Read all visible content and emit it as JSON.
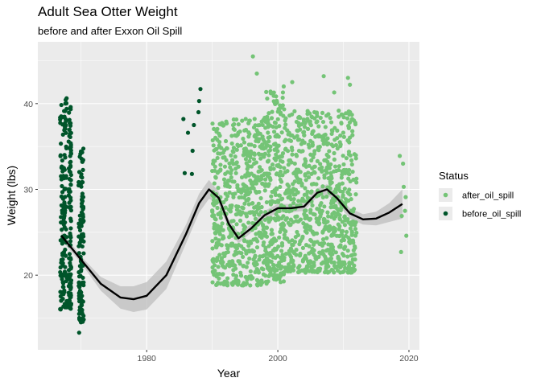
{
  "chart_data": {
    "type": "scatter",
    "title": "Adult Sea Otter Weight",
    "subtitle": "before and after Exxon Oil Spill",
    "xlabel": "Year",
    "ylabel": "Weight (lbs)",
    "xlim": [
      1963.4,
      2021.6
    ],
    "ylim": [
      11.3,
      47.2
    ],
    "x_ticks": [
      1980,
      2000,
      2020
    ],
    "y_ticks": [
      20,
      30,
      40
    ],
    "grid": true,
    "legend": {
      "title": "Status",
      "position": "right",
      "entries": [
        {
          "label": "after_oil_spill",
          "color": "#74c476"
        },
        {
          "label": "before_oil_spill",
          "color": "#00552a"
        }
      ]
    },
    "series": [
      {
        "name": "before_oil_spill",
        "color": "#00552a",
        "clusters": [
          {
            "x": [
              1966.8,
              1967.8
            ],
            "y": [
              16.0,
              40.8
            ]
          },
          {
            "x": [
              1968.1,
              1968.5
            ],
            "y": [
              16.0,
              40.5
            ]
          },
          {
            "x": [
              1969.6,
              1970.4
            ],
            "y": [
              14.5,
              34.8
            ]
          }
        ],
        "points": [
          {
            "x": 1969.7,
            "y": 13.3
          },
          {
            "x": 1985.6,
            "y": 38.2
          },
          {
            "x": 1985.8,
            "y": 31.9
          },
          {
            "x": 1986.3,
            "y": 36.6
          },
          {
            "x": 1986.9,
            "y": 31.8
          },
          {
            "x": 1987.0,
            "y": 34.5
          },
          {
            "x": 1987.2,
            "y": 37.5
          },
          {
            "x": 1987.9,
            "y": 39.0
          },
          {
            "x": 1988.0,
            "y": 40.3
          },
          {
            "x": 1988.2,
            "y": 41.7
          }
        ]
      },
      {
        "name": "after_oil_spill",
        "color": "#74c476",
        "clusters": [
          {
            "x": [
              1990,
              1998
            ],
            "y": [
              18.8,
              38.5
            ]
          },
          {
            "x": [
              1998,
              2001
            ],
            "y": [
              19.0,
              41.5
            ]
          },
          {
            "x": [
              2001,
              2012
            ],
            "y": [
              20.3,
              39.2
            ]
          }
        ],
        "points": [
          {
            "x": 1996.2,
            "y": 45.5
          },
          {
            "x": 1996.8,
            "y": 43.5
          },
          {
            "x": 2000.9,
            "y": 42.0
          },
          {
            "x": 2002.2,
            "y": 42.5
          },
          {
            "x": 2007.0,
            "y": 43.2
          },
          {
            "x": 2008.6,
            "y": 41.3
          },
          {
            "x": 2010.7,
            "y": 43.0
          },
          {
            "x": 2011.0,
            "y": 42.2
          },
          {
            "x": 2018.6,
            "y": 33.9
          },
          {
            "x": 2018.8,
            "y": 22.7
          },
          {
            "x": 2019.2,
            "y": 30.3
          },
          {
            "x": 2019.4,
            "y": 27.5
          },
          {
            "x": 2019.6,
            "y": 24.6
          },
          {
            "x": 2019.1,
            "y": 33.0
          },
          {
            "x": 2018.9,
            "y": 26.9
          },
          {
            "x": 2019.5,
            "y": 29.1
          }
        ]
      }
    ],
    "smooth": {
      "color": "#000000",
      "band_color": "#bdbdbd",
      "points": [
        {
          "x": 1967.0,
          "y": 24.6,
          "lo": 24.1,
          "hi": 25.1
        },
        {
          "x": 1970.0,
          "y": 21.8,
          "lo": 21.4,
          "hi": 22.2
        },
        {
          "x": 1973.0,
          "y": 19.0,
          "lo": 18.2,
          "hi": 19.8
        },
        {
          "x": 1976.0,
          "y": 17.4,
          "lo": 16.1,
          "hi": 18.7
        },
        {
          "x": 1978.0,
          "y": 17.2,
          "lo": 15.7,
          "hi": 18.7
        },
        {
          "x": 1980.0,
          "y": 17.6,
          "lo": 16.0,
          "hi": 19.2
        },
        {
          "x": 1983.0,
          "y": 20.0,
          "lo": 18.4,
          "hi": 21.6
        },
        {
          "x": 1986.0,
          "y": 24.8,
          "lo": 23.7,
          "hi": 25.9
        },
        {
          "x": 1988.0,
          "y": 28.4,
          "lo": 27.3,
          "hi": 29.5
        },
        {
          "x": 1989.5,
          "y": 30.0,
          "lo": 28.9,
          "hi": 31.1
        },
        {
          "x": 1991.0,
          "y": 29.0,
          "lo": 28.3,
          "hi": 29.7
        },
        {
          "x": 1992.5,
          "y": 26.0,
          "lo": 25.4,
          "hi": 26.6
        },
        {
          "x": 1994.0,
          "y": 24.3,
          "lo": 23.7,
          "hi": 24.9
        },
        {
          "x": 1996.0,
          "y": 25.5,
          "lo": 25.0,
          "hi": 26.0
        },
        {
          "x": 1998.0,
          "y": 27.0,
          "lo": 26.5,
          "hi": 27.5
        },
        {
          "x": 2000.0,
          "y": 27.8,
          "lo": 27.3,
          "hi": 28.3
        },
        {
          "x": 2002.0,
          "y": 27.8,
          "lo": 27.3,
          "hi": 28.3
        },
        {
          "x": 2004.0,
          "y": 28.0,
          "lo": 27.5,
          "hi": 28.5
        },
        {
          "x": 2006.0,
          "y": 29.6,
          "lo": 29.1,
          "hi": 30.1
        },
        {
          "x": 2007.5,
          "y": 30.0,
          "lo": 29.4,
          "hi": 30.6
        },
        {
          "x": 2009.0,
          "y": 29.0,
          "lo": 28.4,
          "hi": 29.6
        },
        {
          "x": 2011.0,
          "y": 27.2,
          "lo": 26.6,
          "hi": 27.8
        },
        {
          "x": 2013.0,
          "y": 26.5,
          "lo": 25.9,
          "hi": 27.1
        },
        {
          "x": 2015.0,
          "y": 26.6,
          "lo": 25.8,
          "hi": 27.4
        },
        {
          "x": 2017.0,
          "y": 27.3,
          "lo": 26.2,
          "hi": 28.4
        },
        {
          "x": 2019.0,
          "y": 28.3,
          "lo": 26.6,
          "hi": 30.0
        }
      ]
    }
  }
}
